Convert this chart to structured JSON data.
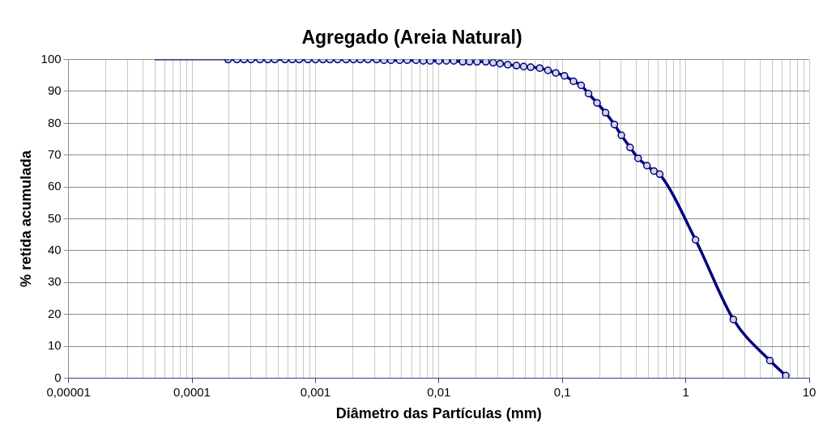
{
  "chart_data": {
    "type": "line",
    "title": "Agregado (Areia Natural)",
    "xlabel": "Diâmetro das Partículas (mm)",
    "ylabel": "% retida acumulada",
    "log": "x",
    "grid": true,
    "legend": false,
    "xlim": [
      1e-05,
      10
    ],
    "xticks": [
      {
        "value": 1e-05,
        "label": "0,00001"
      },
      {
        "value": 0.0001,
        "label": "0,0001"
      },
      {
        "value": 0.001,
        "label": "0,001"
      },
      {
        "value": 0.01,
        "label": "0,01"
      },
      {
        "value": 0.1,
        "label": "0,1"
      },
      {
        "value": 1,
        "label": "1"
      },
      {
        "value": 10,
        "label": "10"
      }
    ],
    "ylim": [
      0,
      100
    ],
    "yticks": [
      0,
      10,
      20,
      30,
      40,
      50,
      60,
      70,
      80,
      90,
      100
    ],
    "series": [
      {
        "color": "#00007f",
        "marker": "none",
        "x": [
          5e-05,
          0.0002
        ],
        "values": [
          100,
          100
        ]
      },
      {
        "color": "#00007f",
        "marker": "circle",
        "x": [
          0.000196,
          0.000231,
          0.000264,
          0.000301,
          0.000355,
          0.000411,
          0.000468,
          0.000566,
          0.000649,
          0.000739,
          0.000869,
          0.001,
          0.00115,
          0.00131,
          0.00151,
          0.00177,
          0.00203,
          0.00231,
          0.00266,
          0.00313,
          0.00359,
          0.00409,
          0.00481,
          0.00554,
          0.00653,
          0.00747,
          0.00851,
          0.01,
          0.0115,
          0.0132,
          0.0156,
          0.0177,
          0.0204,
          0.024,
          0.0275,
          0.0313,
          0.0361,
          0.0425,
          0.0486,
          0.0554,
          0.0656,
          0.0764,
          0.0885,
          0.104,
          0.123,
          0.142,
          0.163,
          0.191,
          0.224,
          0.264,
          0.301,
          0.354,
          0.411,
          0.484,
          0.552,
          0.615,
          1.2,
          2.43,
          4.8,
          6.46
        ],
        "values": [
          100,
          100,
          100,
          100,
          100,
          100,
          100,
          100,
          100,
          100,
          100,
          100,
          100,
          100,
          100,
          100,
          100,
          100,
          100,
          100,
          99.8,
          99.8,
          99.8,
          99.8,
          99.8,
          99.6,
          99.6,
          99.6,
          99.6,
          99.6,
          99.3,
          99.3,
          99.3,
          99.3,
          99,
          98.7,
          98.4,
          98.1,
          97.8,
          97.6,
          97.3,
          96.6,
          95.8,
          94.9,
          93.2,
          91.9,
          89.3,
          86.4,
          83.3,
          79.6,
          76.2,
          72.4,
          69,
          66.7,
          65,
          64,
          43.4,
          18.4,
          5.5,
          0.8
        ]
      }
    ]
  }
}
